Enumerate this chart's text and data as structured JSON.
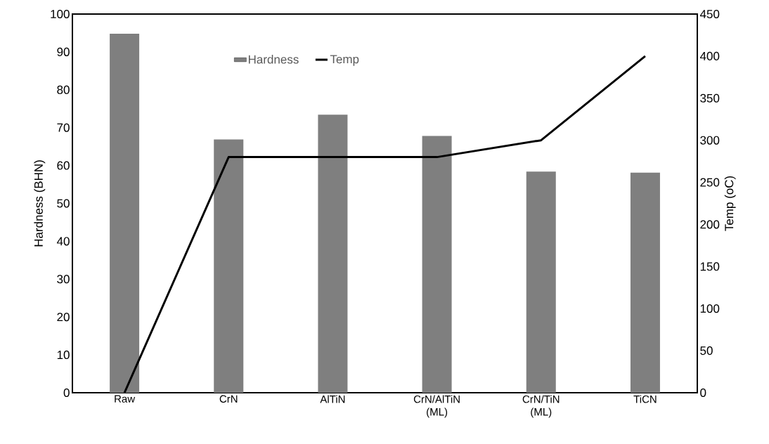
{
  "chart_data": {
    "type": "bar",
    "ylabel": "Hardness (BHN)",
    "y2label": "Temp (oC)",
    "categories": [
      "Raw",
      "CrN",
      "AlTiN",
      "CrN/AlTiN (ML)",
      "CrN/TiN (ML)",
      "TiCN"
    ],
    "series": [
      {
        "name": "Hardness",
        "color": "#7f7f7f",
        "values": [
          94.8,
          66.9,
          73.4,
          67.8,
          58.4,
          58.1
        ]
      },
      {
        "name": "Temp",
        "type": "line",
        "axis": "y2",
        "color": "#000000",
        "values": [
          0,
          280,
          280,
          280,
          300,
          400
        ]
      }
    ],
    "ylim": [
      0,
      100
    ],
    "yticks": [
      0,
      10,
      20,
      30,
      40,
      50,
      60,
      70,
      80,
      90,
      100
    ],
    "y2lim": [
      0,
      450
    ],
    "y2ticks": [
      0,
      50,
      100,
      150,
      200,
      250,
      300,
      350,
      400,
      450
    ],
    "grid": false,
    "legend": "top",
    "marker": "none",
    "line_style": "solid"
  }
}
